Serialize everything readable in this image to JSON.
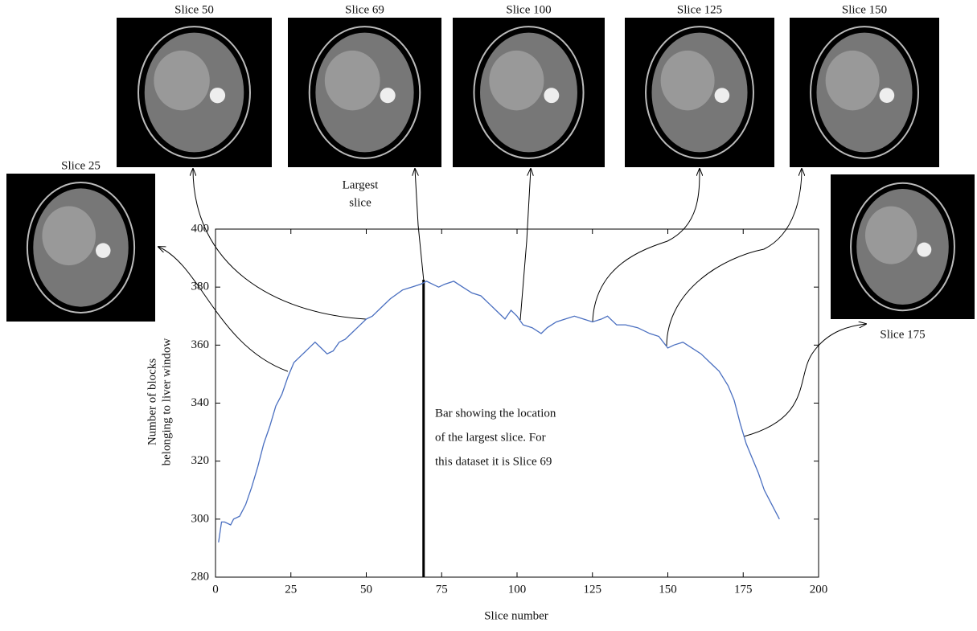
{
  "chart_data": {
    "type": "line",
    "xlabel": "Slice number",
    "ylabel": [
      "Number of blocks",
      "belonging to liver window"
    ],
    "xlim": [
      0,
      200
    ],
    "xticks": [
      0,
      25,
      50,
      75,
      100,
      125,
      150,
      175,
      200
    ],
    "ylim": [
      280,
      400
    ],
    "yticks": [
      280,
      300,
      320,
      340,
      360,
      380,
      400
    ],
    "x": [
      1,
      2,
      3,
      5,
      6,
      8,
      10,
      12,
      14,
      16,
      18,
      20,
      22,
      24,
      26,
      28,
      30,
      32,
      33,
      35,
      37,
      39,
      41,
      43,
      45,
      47,
      50,
      52,
      55,
      58,
      62,
      65,
      68,
      70,
      72,
      74,
      76,
      79,
      82,
      85,
      88,
      91,
      94,
      96,
      98,
      100,
      102,
      105,
      108,
      110,
      113,
      116,
      119,
      122,
      125,
      128,
      130,
      133,
      136,
      140,
      144,
      147,
      150,
      152,
      155,
      158,
      161,
      164,
      167,
      170,
      172,
      174,
      176,
      178,
      180,
      182,
      184,
      186,
      187
    ],
    "values": [
      292,
      299,
      299,
      298,
      300,
      301,
      305,
      311,
      318,
      326,
      332,
      339,
      343,
      349,
      354,
      356,
      358,
      360,
      361,
      359,
      357,
      358,
      361,
      362,
      364,
      366,
      369,
      370,
      373,
      376,
      379,
      380,
      381,
      382,
      381,
      380,
      381,
      382,
      380,
      378,
      377,
      374,
      371,
      369,
      372,
      370,
      367,
      366,
      364,
      366,
      368,
      369,
      370,
      369,
      368,
      369,
      370,
      367,
      367,
      366,
      364,
      363,
      359,
      360,
      361,
      359,
      357,
      354,
      351,
      346,
      341,
      333,
      326,
      321,
      316,
      310,
      306,
      302,
      300
    ],
    "color": "#4a6fc0",
    "largest_slice": 69,
    "annotations": {
      "largest": [
        "Largest",
        "slice"
      ],
      "bar": [
        "Bar  showing the location",
        "of the largest slice. For",
        "this dataset it is Slice 69"
      ]
    },
    "images": [
      "Slice 25",
      "Slice 50",
      "Slice 69",
      "Slice 100",
      "Slice 125",
      "Slice 150",
      "Slice 175"
    ]
  }
}
